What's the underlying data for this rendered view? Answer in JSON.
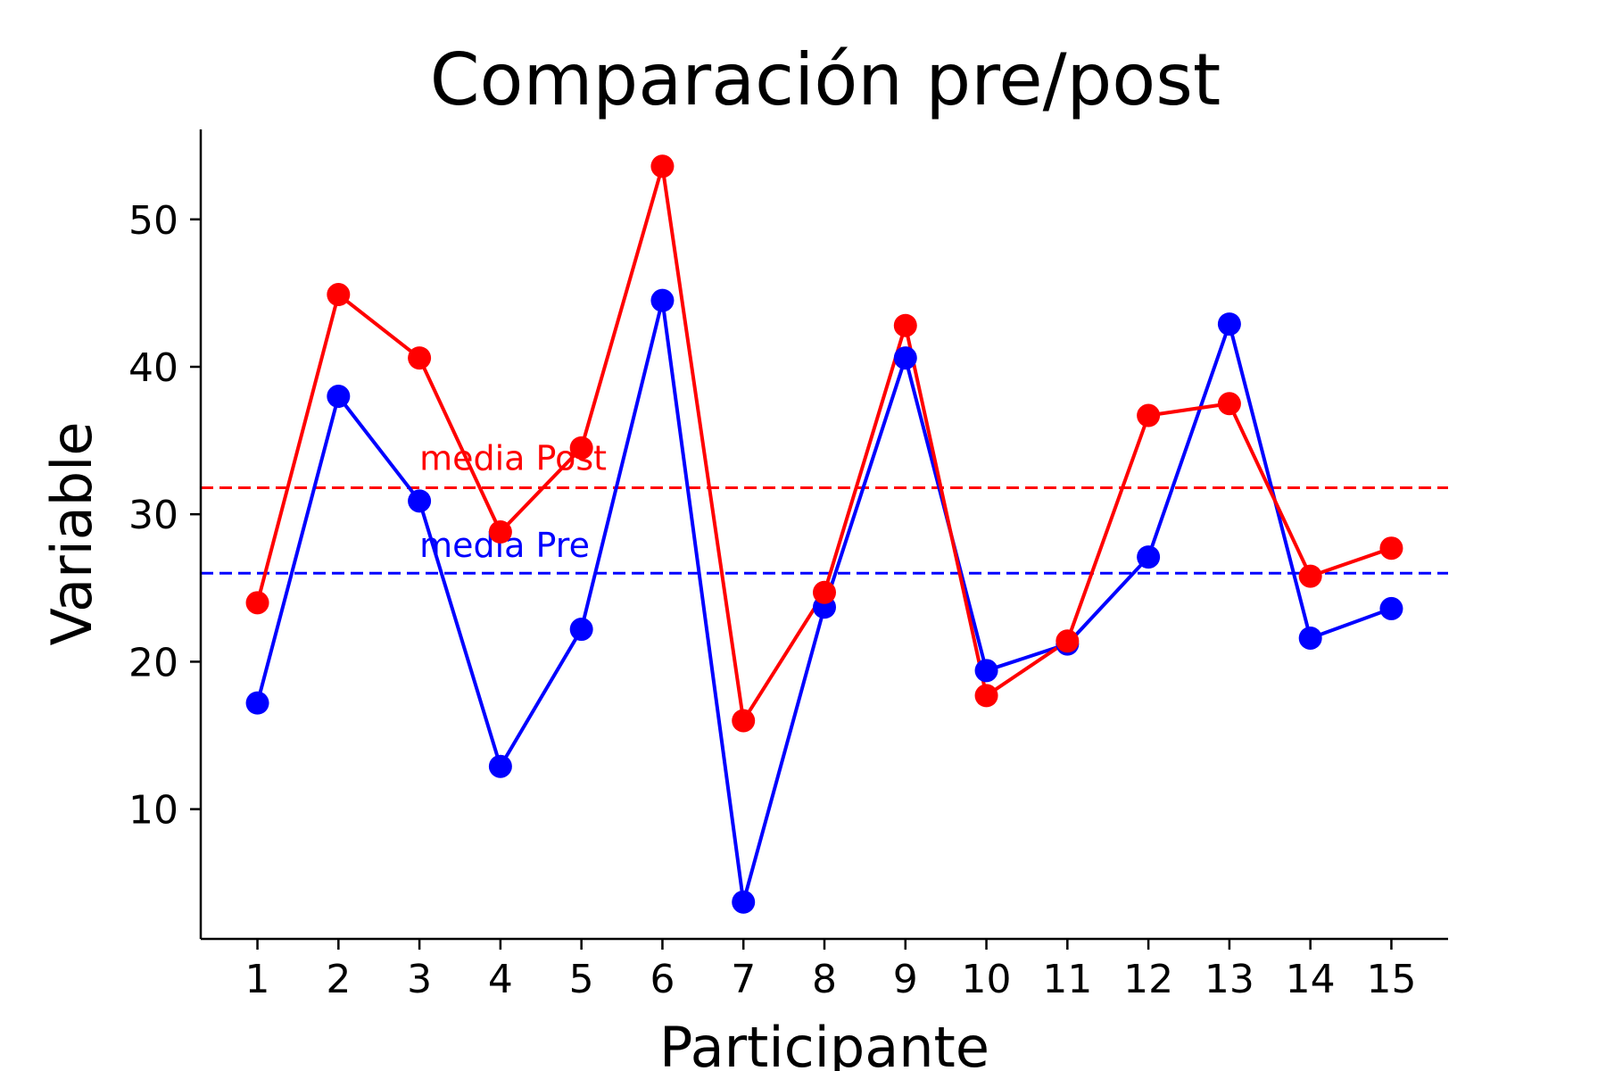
{
  "chart_data": {
    "type": "line",
    "title": "Comparación pre/post",
    "xlabel": "Participante",
    "ylabel": "Variable",
    "x": [
      1,
      2,
      3,
      4,
      5,
      6,
      7,
      8,
      9,
      10,
      11,
      12,
      13,
      14,
      15
    ],
    "xtick_labels": [
      "1",
      "2",
      "3",
      "4",
      "5",
      "6",
      "7",
      "8",
      "9",
      "10",
      "11",
      "12",
      "13",
      "14",
      "15"
    ],
    "yticks": [
      10,
      20,
      30,
      40,
      50
    ],
    "ytick_labels": [
      "10",
      "20",
      "30",
      "40",
      "50"
    ],
    "xlim": [
      0.3,
      15.7
    ],
    "ylim": [
      1.2,
      56.1
    ],
    "grid": false,
    "series": [
      {
        "key": "pre",
        "color": "#0000ff",
        "values": [
          17.2,
          38.0,
          30.9,
          12.9,
          22.2,
          44.5,
          3.7,
          23.7,
          40.6,
          19.4,
          21.2,
          27.1,
          42.9,
          21.6,
          23.6
        ]
      },
      {
        "key": "post",
        "color": "#ff0000",
        "values": [
          24.0,
          44.9,
          40.6,
          28.8,
          34.5,
          53.6,
          16.0,
          24.7,
          42.8,
          17.7,
          21.4,
          36.7,
          37.5,
          25.8,
          27.7
        ]
      }
    ],
    "reference_lines": [
      {
        "series": "post",
        "value": 31.8,
        "color": "#ff0000",
        "style": "dashed",
        "label": "media Post",
        "label_x": 3,
        "label_y": 33.0
      },
      {
        "series": "pre",
        "value": 26.0,
        "color": "#0000ff",
        "style": "dashed",
        "label": "media Pre",
        "label_x": 3,
        "label_y": 27.1
      }
    ]
  }
}
